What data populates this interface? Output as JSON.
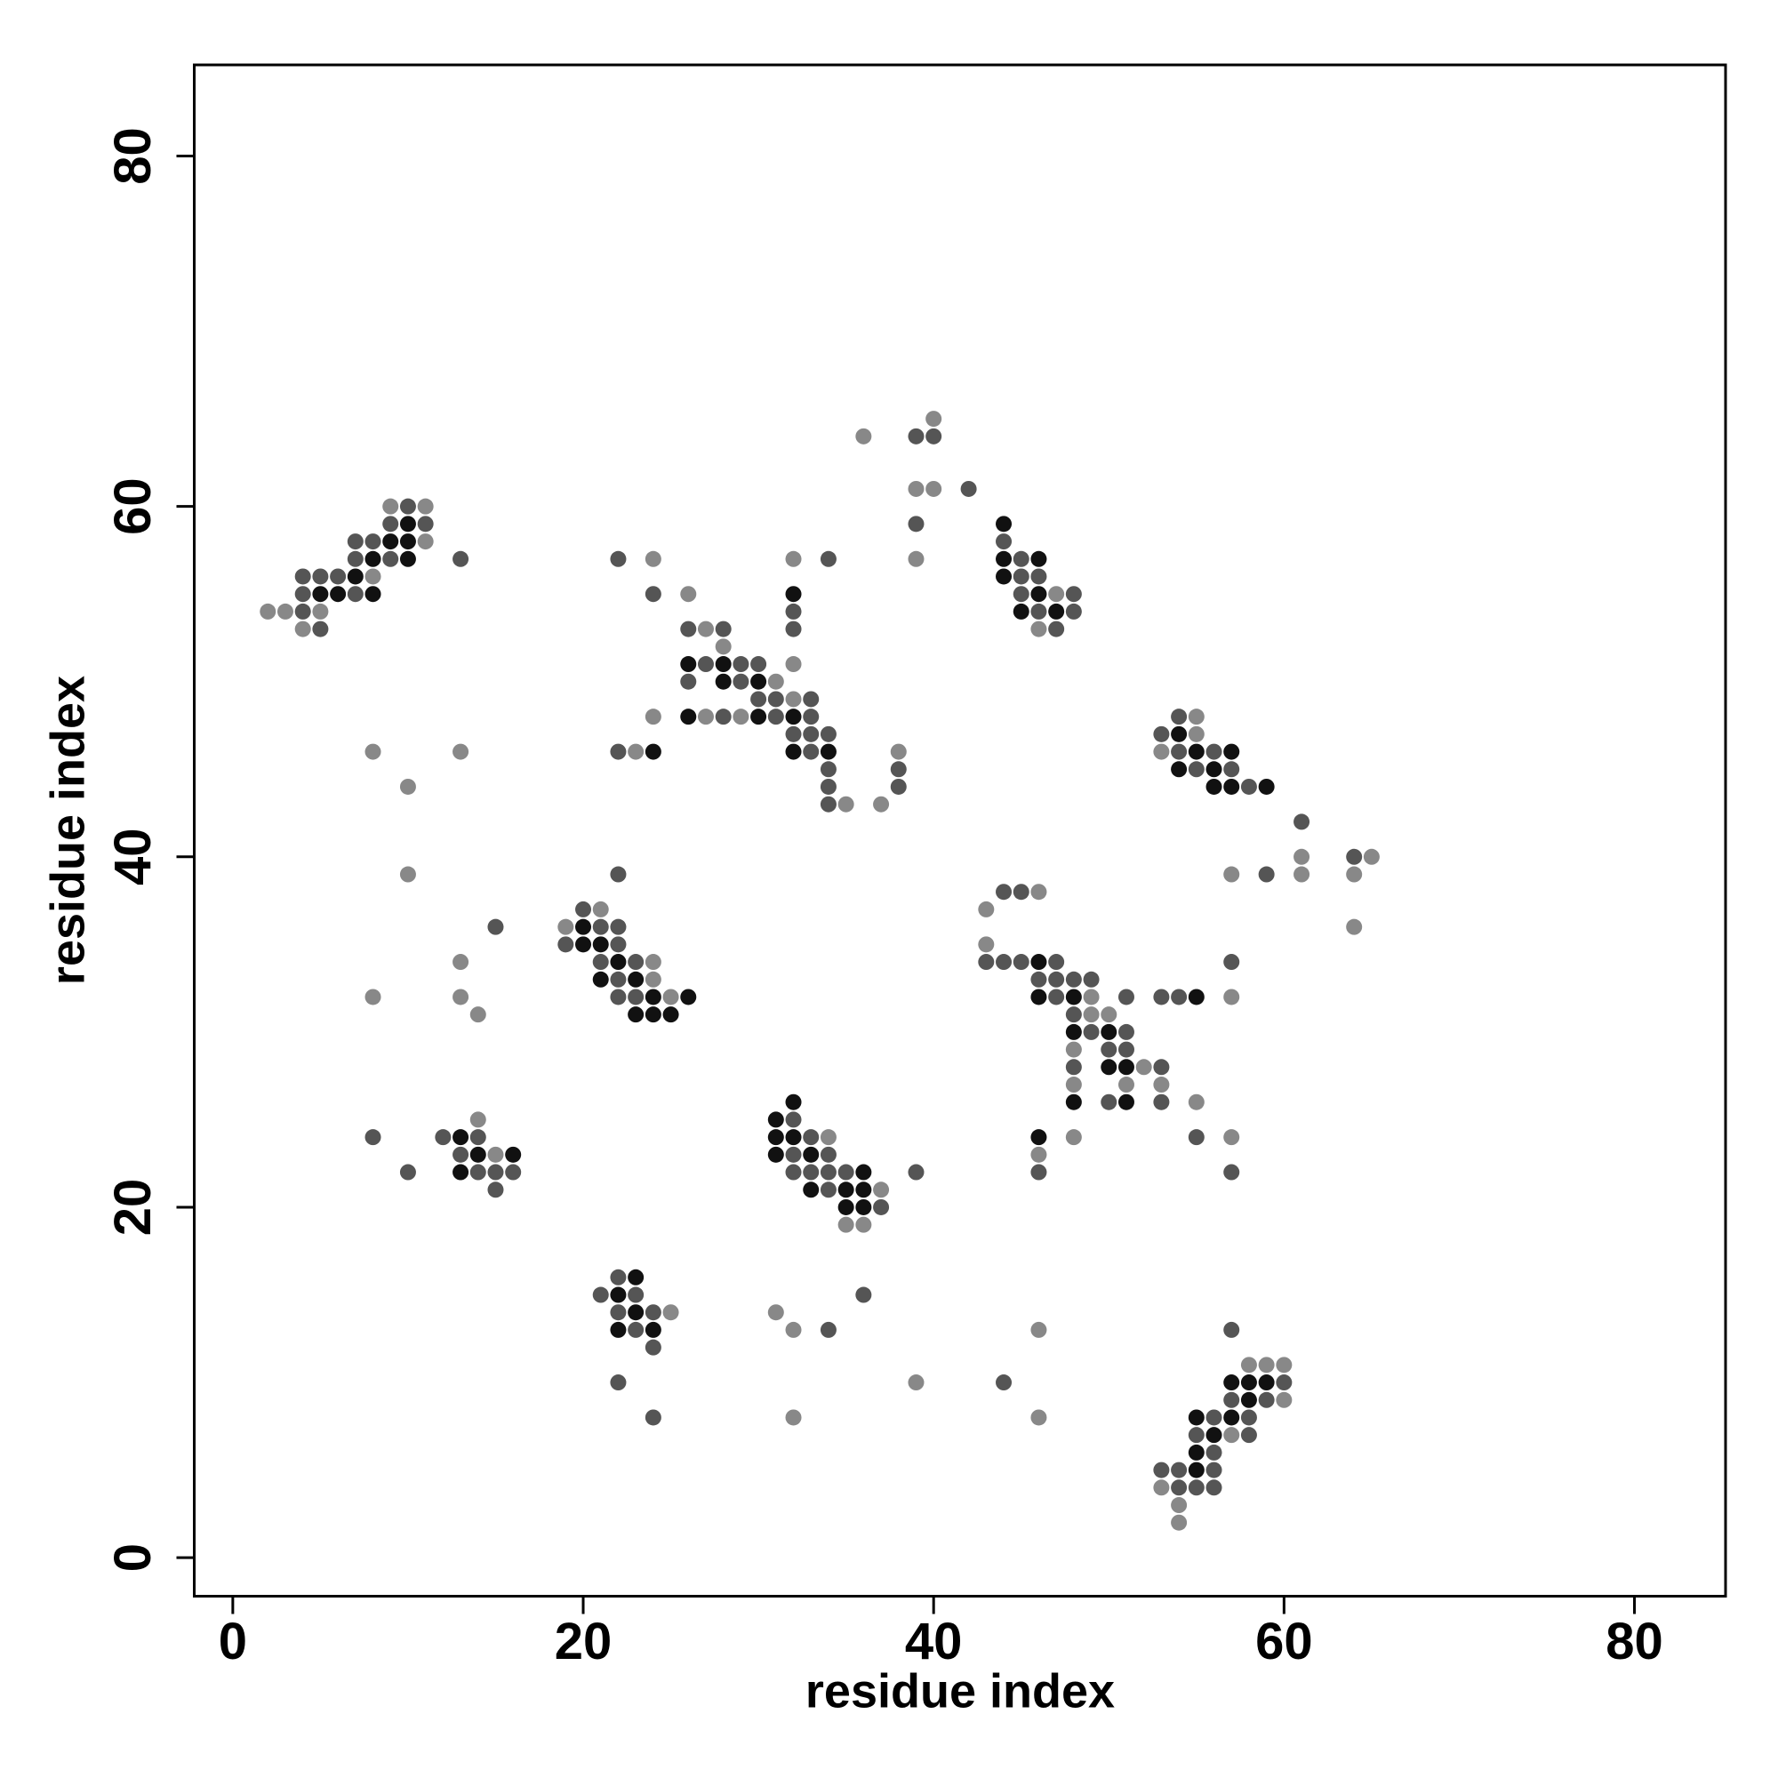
{
  "chart_data": {
    "type": "scatter",
    "xlabel": "residue index",
    "ylabel": "residue index",
    "xlim": [
      -2.2,
      85.2
    ],
    "ylim": [
      -2.2,
      85.2
    ],
    "xticks": [
      0,
      20,
      40,
      60,
      80
    ],
    "yticks": [
      0,
      20,
      40,
      60,
      80
    ],
    "series": [
      {
        "color": "#888888",
        "x": [
          2,
          3,
          5,
          4,
          8,
          11,
          9,
          11,
          24,
          32,
          26,
          27,
          28,
          32,
          31,
          32,
          24,
          27,
          29,
          8,
          13,
          23,
          38,
          10,
          35,
          37,
          36,
          40,
          39,
          40,
          39,
          47,
          46,
          55,
          55,
          53,
          61,
          65,
          57,
          61,
          64,
          64,
          10,
          13,
          8,
          13,
          14,
          21,
          19,
          24,
          24,
          25,
          46,
          43,
          43,
          49,
          57,
          49,
          50,
          48,
          52,
          48,
          51,
          53,
          55,
          48,
          57,
          46,
          14,
          15,
          34,
          37,
          35,
          36,
          25,
          31,
          32,
          46,
          39,
          32,
          46,
          58,
          59,
          60,
          60,
          57,
          53,
          54,
          54
        ],
        "y": [
          54,
          54,
          54,
          53,
          56,
          58,
          60,
          60,
          57,
          57,
          55,
          53,
          52,
          51,
          50,
          49,
          48,
          48,
          48,
          46,
          46,
          46,
          46,
          44,
          43,
          43,
          64,
          65,
          61,
          61,
          57,
          55,
          53,
          48,
          47,
          46,
          40,
          40,
          39,
          39,
          39,
          36,
          39,
          34,
          32,
          32,
          31,
          37,
          36,
          34,
          33,
          32,
          38,
          37,
          35,
          32,
          32,
          31,
          31,
          29,
          28,
          27,
          27,
          27,
          26,
          24,
          24,
          23,
          25,
          23,
          24,
          21,
          19,
          19,
          14,
          14,
          13,
          13,
          10,
          8,
          8,
          11,
          11,
          11,
          9,
          7,
          4,
          3,
          2
        ]
      },
      {
        "color": "#555555",
        "x": [
          4,
          5,
          4,
          7,
          4,
          5,
          6,
          7,
          9,
          13,
          7,
          8,
          9,
          11,
          10,
          22,
          34,
          24,
          32,
          26,
          28,
          32,
          27,
          29,
          30,
          26,
          29,
          30,
          31,
          33,
          28,
          31,
          33,
          32,
          33,
          34,
          22,
          33,
          34,
          38,
          34,
          38,
          34,
          39,
          40,
          42,
          39,
          44,
          45,
          45,
          46,
          45,
          48,
          46,
          48,
          47,
          54,
          53,
          54,
          56,
          55,
          57,
          58,
          61,
          64,
          59,
          22,
          15,
          20,
          21,
          22,
          19,
          22,
          21,
          23,
          22,
          22,
          23,
          44,
          45,
          43,
          44,
          45,
          47,
          57,
          46,
          47,
          48,
          49,
          47,
          51,
          53,
          54,
          48,
          49,
          51,
          50,
          51,
          48,
          53,
          50,
          53,
          55,
          46,
          57,
          8,
          12,
          14,
          13,
          10,
          14,
          15,
          16,
          15,
          32,
          33,
          32,
          34,
          32,
          33,
          34,
          35,
          39,
          34,
          37,
          22,
          21,
          23,
          36,
          22,
          24,
          23,
          34,
          57,
          24,
          22,
          44,
          24,
          60,
          57,
          59,
          56,
          58,
          55,
          58,
          56,
          53,
          54,
          56,
          54,
          55,
          56
        ],
        "y": [
          54,
          53,
          55,
          55,
          56,
          56,
          56,
          57,
          57,
          57,
          58,
          58,
          59,
          59,
          60,
          57,
          57,
          55,
          54,
          53,
          53,
          53,
          51,
          51,
          51,
          50,
          50,
          49,
          49,
          49,
          48,
          48,
          48,
          47,
          47,
          47,
          46,
          46,
          45,
          45,
          44,
          44,
          43,
          64,
          64,
          61,
          59,
          58,
          57,
          56,
          56,
          55,
          55,
          54,
          54,
          53,
          48,
          47,
          46,
          46,
          45,
          45,
          44,
          42,
          40,
          39,
          39,
          36,
          37,
          36,
          36,
          35,
          35,
          34,
          34,
          33,
          32,
          32,
          38,
          38,
          34,
          34,
          34,
          34,
          34,
          33,
          33,
          33,
          33,
          32,
          32,
          32,
          32,
          31,
          30,
          30,
          29,
          29,
          28,
          28,
          26,
          26,
          24,
          22,
          22,
          24,
          24,
          24,
          23,
          22,
          22,
          22,
          22,
          21,
          25,
          24,
          23,
          23,
          22,
          22,
          22,
          22,
          22,
          21,
          20,
          16,
          15,
          15,
          15,
          14,
          14,
          13,
          13,
          13,
          12,
          10,
          10,
          8,
          10,
          9,
          9,
          8,
          8,
          7,
          7,
          6,
          5,
          5,
          5,
          4,
          4,
          4
        ]
      },
      {
        "color": "#111111",
        "x": [
          5,
          6,
          8,
          7,
          8,
          10,
          9,
          10,
          10,
          32,
          26,
          28,
          28,
          30,
          26,
          30,
          32,
          24,
          32,
          34,
          44,
          44,
          46,
          44,
          46,
          45,
          47,
          54,
          55,
          57,
          54,
          56,
          56,
          57,
          59,
          20,
          20,
          21,
          22,
          21,
          23,
          24,
          26,
          23,
          24,
          25,
          46,
          46,
          48,
          55,
          48,
          50,
          50,
          51,
          48,
          51,
          46,
          13,
          14,
          16,
          13,
          32,
          31,
          31,
          32,
          31,
          33,
          36,
          33,
          35,
          36,
          35,
          36,
          23,
          22,
          23,
          22,
          24,
          57,
          58,
          59,
          58,
          55,
          57,
          56,
          55,
          55
        ],
        "y": [
          55,
          55,
          55,
          56,
          57,
          57,
          58,
          58,
          59,
          55,
          51,
          51,
          50,
          50,
          48,
          48,
          48,
          46,
          46,
          46,
          59,
          57,
          57,
          56,
          55,
          54,
          54,
          47,
          46,
          46,
          45,
          45,
          44,
          44,
          44,
          36,
          35,
          35,
          34,
          33,
          33,
          32,
          32,
          31,
          31,
          31,
          34,
          32,
          32,
          32,
          30,
          30,
          28,
          28,
          26,
          26,
          24,
          24,
          23,
          23,
          22,
          26,
          25,
          24,
          24,
          23,
          23,
          22,
          21,
          21,
          21,
          20,
          20,
          16,
          15,
          14,
          13,
          13,
          10,
          10,
          10,
          9,
          8,
          8,
          7,
          6,
          5
        ]
      }
    ]
  }
}
